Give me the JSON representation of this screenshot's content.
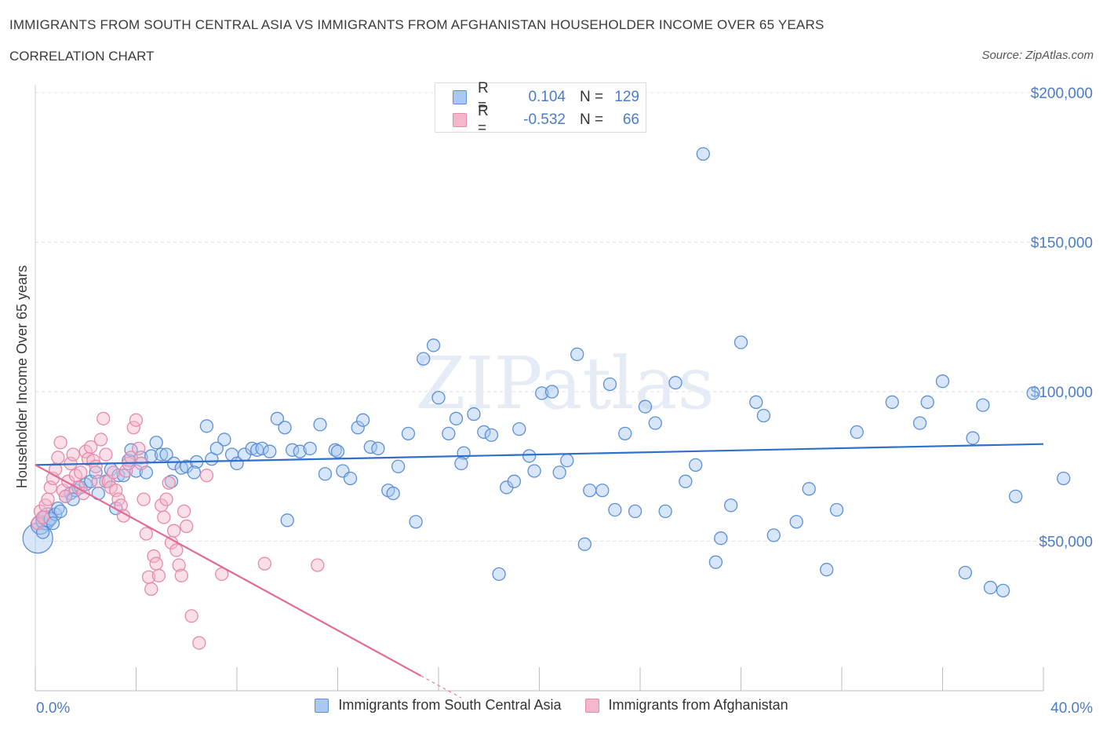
{
  "header": {
    "title": "IMMIGRANTS FROM SOUTH CENTRAL ASIA VS IMMIGRANTS FROM AFGHANISTAN HOUSEHOLDER INCOME OVER 65 YEARS",
    "subtitle": "CORRELATION CHART",
    "source": "Source: ZipAtlas.com"
  },
  "legend": {
    "r_label": "R =",
    "n_label": "N =",
    "entries": [
      {
        "r": "0.104",
        "n": "129"
      },
      {
        "r": "-0.532",
        "n": "66"
      }
    ]
  },
  "watermark": "ZIPatlas",
  "colors": {
    "blue_fill": "#a9c8f2",
    "blue_stroke": "#5b8fd6",
    "blue_line": "#2f6fcc",
    "pink_fill": "#f4b6cb",
    "pink_stroke": "#e68aa9",
    "pink_line": "#e06b97",
    "accent_text": "#4a7cc9"
  },
  "chart_data": {
    "type": "scatter",
    "title": "IMMIGRANTS FROM SOUTH CENTRAL ASIA VS IMMIGRANTS FROM AFGHANISTAN HOUSEHOLDER INCOME OVER 65 YEARS",
    "xlabel": "",
    "ylabel": "Householder Income Over 65 years",
    "xlim": [
      0,
      40
    ],
    "ylim": [
      0,
      200000
    ],
    "x_tick_labels": [
      "0.0%",
      "40.0%"
    ],
    "y_ticks": [
      50000,
      100000,
      150000,
      200000
    ],
    "y_tick_labels": [
      "$50,000",
      "$100,000",
      "$150,000",
      "$200,000"
    ],
    "grid": true,
    "legend_position": "top-center",
    "series": [
      {
        "name": "Immigrants from South Central Asia",
        "trend": {
          "x": [
            0,
            40
          ],
          "y": [
            75500,
            82500
          ]
        },
        "points": [
          [
            0.1,
            51000
          ],
          [
            0.2,
            55500
          ],
          [
            0.4,
            57000
          ],
          [
            0.5,
            58000
          ],
          [
            0.6,
            57500
          ],
          [
            0.8,
            59000
          ],
          [
            0.9,
            61000
          ],
          [
            0.3,
            53000
          ],
          [
            0.7,
            56000
          ],
          [
            1.0,
            60000
          ],
          [
            1.2,
            65000
          ],
          [
            1.4,
            66000
          ],
          [
            1.6,
            67000
          ],
          [
            1.8,
            68000
          ],
          [
            2.0,
            69000
          ],
          [
            2.2,
            70000
          ],
          [
            2.5,
            66000
          ],
          [
            2.8,
            70000
          ],
          [
            3.0,
            74000
          ],
          [
            3.3,
            72000
          ],
          [
            3.5,
            72000
          ],
          [
            3.7,
            77000
          ],
          [
            3.8,
            80500
          ],
          [
            4.0,
            73500
          ],
          [
            4.2,
            78000
          ],
          [
            4.4,
            73000
          ],
          [
            4.6,
            78500
          ],
          [
            4.8,
            83000
          ],
          [
            5.0,
            79000
          ],
          [
            5.2,
            79000
          ],
          [
            5.5,
            76000
          ],
          [
            5.8,
            74500
          ],
          [
            6.0,
            75000
          ],
          [
            6.4,
            76500
          ],
          [
            6.8,
            88500
          ],
          [
            7.0,
            77500
          ],
          [
            7.5,
            84000
          ],
          [
            7.8,
            79000
          ],
          [
            8.0,
            76000
          ],
          [
            8.3,
            79000
          ],
          [
            8.6,
            81000
          ],
          [
            8.8,
            80500
          ],
          [
            9.0,
            81000
          ],
          [
            9.3,
            80000
          ],
          [
            9.6,
            91000
          ],
          [
            9.9,
            88000
          ],
          [
            10.2,
            80500
          ],
          [
            10.5,
            80000
          ],
          [
            10.9,
            81000
          ],
          [
            11.3,
            89000
          ],
          [
            11.5,
            72500
          ],
          [
            11.9,
            80500
          ],
          [
            12.2,
            73500
          ],
          [
            12.5,
            71000
          ],
          [
            12.8,
            88000
          ],
          [
            13.0,
            90500
          ],
          [
            13.3,
            81500
          ],
          [
            13.6,
            81000
          ],
          [
            14.0,
            67000
          ],
          [
            14.4,
            75000
          ],
          [
            14.8,
            86000
          ],
          [
            15.1,
            56500
          ],
          [
            15.4,
            111000
          ],
          [
            15.8,
            115500
          ],
          [
            16.0,
            98000
          ],
          [
            16.4,
            86000
          ],
          [
            16.7,
            91000
          ],
          [
            17.0,
            79500
          ],
          [
            17.4,
            92500
          ],
          [
            17.8,
            86500
          ],
          [
            18.1,
            85500
          ],
          [
            18.4,
            39000
          ],
          [
            18.7,
            68000
          ],
          [
            19.0,
            70000
          ],
          [
            19.2,
            87500
          ],
          [
            19.6,
            78500
          ],
          [
            19.8,
            73500
          ],
          [
            20.1,
            99500
          ],
          [
            20.5,
            100000
          ],
          [
            20.8,
            73000
          ],
          [
            21.1,
            77000
          ],
          [
            21.5,
            112500
          ],
          [
            21.8,
            49000
          ],
          [
            22.0,
            67000
          ],
          [
            22.5,
            67000
          ],
          [
            22.8,
            102500
          ],
          [
            23.0,
            60500
          ],
          [
            23.4,
            86000
          ],
          [
            23.8,
            60000
          ],
          [
            24.2,
            95000
          ],
          [
            24.6,
            89500
          ],
          [
            25.0,
            60000
          ],
          [
            25.4,
            103000
          ],
          [
            25.8,
            70000
          ],
          [
            26.2,
            75500
          ],
          [
            26.5,
            179500
          ],
          [
            27.0,
            43000
          ],
          [
            27.2,
            51000
          ],
          [
            27.6,
            62000
          ],
          [
            28.0,
            116500
          ],
          [
            28.6,
            96500
          ],
          [
            28.9,
            92000
          ],
          [
            29.3,
            52000
          ],
          [
            30.2,
            56500
          ],
          [
            30.7,
            67500
          ],
          [
            31.4,
            40500
          ],
          [
            31.8,
            60500
          ],
          [
            32.6,
            86500
          ],
          [
            34.0,
            96500
          ],
          [
            35.1,
            89500
          ],
          [
            35.4,
            96500
          ],
          [
            36.0,
            103500
          ],
          [
            36.9,
            39500
          ],
          [
            37.2,
            84500
          ],
          [
            37.6,
            95500
          ],
          [
            37.9,
            34500
          ],
          [
            38.4,
            33500
          ],
          [
            38.9,
            65000
          ],
          [
            39.6,
            99500
          ],
          [
            40.8,
            71000
          ],
          [
            1.5,
            64000
          ],
          [
            2.4,
            73000
          ],
          [
            3.2,
            61000
          ],
          [
            5.4,
            70000
          ],
          [
            6.3,
            73000
          ],
          [
            7.2,
            81000
          ],
          [
            10.0,
            57000
          ],
          [
            12.0,
            80000
          ],
          [
            14.2,
            66000
          ],
          [
            16.9,
            76000
          ]
        ]
      },
      {
        "name": "Immigrants from Afghanistan",
        "trend": {
          "x": [
            0,
            15.3
          ],
          "y": [
            75500,
            5000
          ]
        },
        "points": [
          [
            0.1,
            56000
          ],
          [
            0.2,
            60000
          ],
          [
            0.3,
            58000
          ],
          [
            0.4,
            62000
          ],
          [
            0.5,
            64000
          ],
          [
            0.6,
            68000
          ],
          [
            0.7,
            71000
          ],
          [
            0.8,
            74000
          ],
          [
            0.9,
            78000
          ],
          [
            1.0,
            83000
          ],
          [
            1.1,
            67000
          ],
          [
            1.2,
            65000
          ],
          [
            1.3,
            70000
          ],
          [
            1.4,
            76000
          ],
          [
            1.5,
            79000
          ],
          [
            1.6,
            72000
          ],
          [
            1.7,
            68000
          ],
          [
            1.8,
            73000
          ],
          [
            1.9,
            66000
          ],
          [
            2.0,
            80000
          ],
          [
            2.1,
            77500
          ],
          [
            2.2,
            81500
          ],
          [
            2.3,
            77000
          ],
          [
            2.4,
            75000
          ],
          [
            2.5,
            70000
          ],
          [
            2.6,
            84000
          ],
          [
            2.7,
            91000
          ],
          [
            2.8,
            79000
          ],
          [
            2.9,
            70000
          ],
          [
            3.0,
            68000
          ],
          [
            3.1,
            73000
          ],
          [
            3.2,
            67000
          ],
          [
            3.3,
            64000
          ],
          [
            3.4,
            62000
          ],
          [
            3.5,
            58500
          ],
          [
            3.6,
            73500
          ],
          [
            3.7,
            76000
          ],
          [
            3.8,
            78000
          ],
          [
            3.9,
            88000
          ],
          [
            4.0,
            90500
          ],
          [
            4.1,
            81000
          ],
          [
            4.2,
            76000
          ],
          [
            4.3,
            64000
          ],
          [
            4.4,
            52500
          ],
          [
            4.5,
            38000
          ],
          [
            4.6,
            34000
          ],
          [
            4.7,
            45000
          ],
          [
            4.8,
            42500
          ],
          [
            4.9,
            38500
          ],
          [
            5.0,
            62000
          ],
          [
            5.1,
            58000
          ],
          [
            5.2,
            64000
          ],
          [
            5.3,
            69500
          ],
          [
            5.4,
            49500
          ],
          [
            5.5,
            53500
          ],
          [
            5.6,
            47000
          ],
          [
            5.7,
            42000
          ],
          [
            5.8,
            38500
          ],
          [
            5.9,
            60000
          ],
          [
            6.0,
            55000
          ],
          [
            6.2,
            25000
          ],
          [
            6.5,
            16000
          ],
          [
            6.8,
            72000
          ],
          [
            7.4,
            39000
          ],
          [
            9.1,
            42500
          ],
          [
            11.2,
            42000
          ]
        ]
      }
    ]
  }
}
